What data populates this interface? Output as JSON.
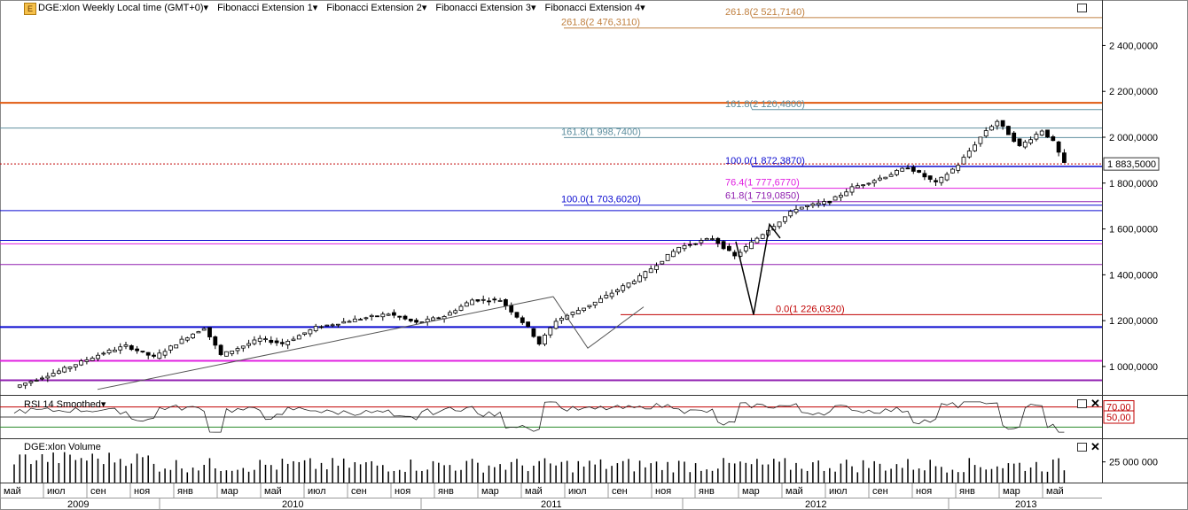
{
  "toolbar": {
    "symbol": "DGE:xlon Weekly Local time (GMT+0)",
    "menus": [
      "Fibonacci Extension 1",
      "Fibonacci Extension 2",
      "Fibonacci Extension 3",
      "Fibonacci Extension 4"
    ]
  },
  "panes": {
    "rsi_label": "RSI 14 Smoothed",
    "volume_label": "DGE:xlon Volume"
  },
  "colors": {
    "up": "#ffffff",
    "down": "#000000",
    "navy": "#0a0ad0",
    "magenta": "#e020e0",
    "orange": "#e05a10",
    "tan": "#c08040",
    "teal": "#5f8f9f",
    "red": "#c00000",
    "purple": "#9020b0"
  },
  "chart_data": [
    {
      "type": "candlestick",
      "pane": "price",
      "y_axis": {
        "range": [
          880,
          2560
        ],
        "ticks": [
          "1 000,0000",
          "1 200,0000",
          "1 400,0000",
          "1 600,0000",
          "1 800,0000",
          "2 000,0000",
          "2 200,0000",
          "2 400,0000"
        ],
        "tick_values": [
          1000,
          1200,
          1400,
          1600,
          1800,
          2000,
          2200,
          2400
        ],
        "last_price_label": "1 883,5000",
        "last_price": 1883.5
      },
      "x_axis": {
        "months": [
          "май",
          "июл",
          "сен",
          "ноя",
          "янв",
          "мар",
          "май",
          "июл",
          "сен",
          "ноя",
          "янв",
          "мар",
          "май",
          "июл",
          "сен",
          "ноя",
          "янв",
          "мар",
          "май",
          "июл",
          "сен",
          "ноя",
          "янв",
          "мар",
          "май"
        ],
        "years": [
          "2009",
          "2010",
          "2011",
          "2012",
          "2013"
        ]
      },
      "anchors": [
        {
          "week": 0,
          "price": 910
        },
        {
          "week": 8,
          "price": 980
        },
        {
          "week": 16,
          "price": 1060
        },
        {
          "week": 20,
          "price": 1090
        },
        {
          "week": 25,
          "price": 1040
        },
        {
          "week": 31,
          "price": 1130
        },
        {
          "week": 34,
          "price": 1170
        },
        {
          "week": 37,
          "price": 1050
        },
        {
          "week": 44,
          "price": 1120
        },
        {
          "week": 48,
          "price": 1100
        },
        {
          "week": 54,
          "price": 1170
        },
        {
          "week": 60,
          "price": 1200
        },
        {
          "week": 67,
          "price": 1230
        },
        {
          "week": 72,
          "price": 1190
        },
        {
          "week": 77,
          "price": 1220
        },
        {
          "week": 82,
          "price": 1290
        },
        {
          "week": 87,
          "price": 1290
        },
        {
          "week": 92,
          "price": 1170
        },
        {
          "week": 94,
          "price": 1100
        },
        {
          "week": 97,
          "price": 1200
        },
        {
          "week": 104,
          "price": 1280
        },
        {
          "week": 112,
          "price": 1390
        },
        {
          "week": 119,
          "price": 1520
        },
        {
          "week": 125,
          "price": 1560
        },
        {
          "week": 129,
          "price": 1480
        },
        {
          "week": 133,
          "price": 1560
        },
        {
          "week": 140,
          "price": 1690
        },
        {
          "week": 146,
          "price": 1720
        },
        {
          "week": 150,
          "price": 1780
        },
        {
          "week": 156,
          "price": 1830
        },
        {
          "week": 160,
          "price": 1870
        },
        {
          "week": 165,
          "price": 1800
        },
        {
          "week": 169,
          "price": 1880
        },
        {
          "week": 174,
          "price": 2030
        },
        {
          "week": 176,
          "price": 2070
        },
        {
          "week": 180,
          "price": 1960
        },
        {
          "week": 184,
          "price": 2030
        },
        {
          "week": 186,
          "price": 1980
        },
        {
          "week": 188,
          "price": 1884
        }
      ],
      "fibonacci_levels": [
        {
          "label": "261.8(2 521,7140)",
          "value": 2521.714,
          "color": "tan"
        },
        {
          "label": "261.8(2 476,3110)",
          "value": 2476.311,
          "color": "tan"
        },
        {
          "label": "161.8(2 120,4800)",
          "value": 2120.48,
          "color": "teal"
        },
        {
          "label": "161.8(1 998,7400)",
          "value": 1998.74,
          "color": "teal"
        },
        {
          "label": "100.0(1 872,3870)",
          "value": 1872.387,
          "color": "navy"
        },
        {
          "label": "76.4(1 777,6770)",
          "value": 1777.677,
          "color": "magenta"
        },
        {
          "label": "61.8(1 719,0850)",
          "value": 1719.085,
          "color": "purple"
        },
        {
          "label": "100.0(1 703,6020)",
          "value": 1703.602,
          "color": "navy"
        },
        {
          "label": "0.0(1 226,0320)",
          "value": 1226.032,
          "color": "red"
        }
      ]
    },
    {
      "type": "line",
      "pane": "rsi",
      "name": "RSI 14 Smoothed",
      "levels": [
        {
          "label": "70,00",
          "value": 70
        },
        {
          "label": "50,00",
          "value": 50
        }
      ]
    },
    {
      "type": "bar",
      "pane": "volume",
      "name": "DGE:xlon Volume",
      "y_tick": "25 000 000",
      "y_tick_value": 25000000
    }
  ]
}
